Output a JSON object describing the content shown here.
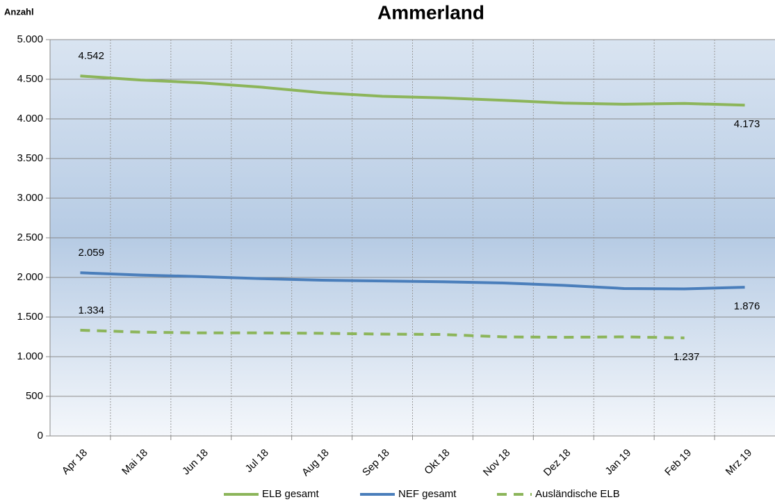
{
  "chart_data": {
    "type": "line",
    "title": "Ammerland",
    "y_label": "Anzahl",
    "categories": [
      "Apr 18",
      "Mai 18",
      "Jun 18",
      "Jul 18",
      "Aug 18",
      "Sep 18",
      "Okt 18",
      "Nov 18",
      "Dez 18",
      "Jan 19",
      "Feb 19",
      "Mrz 19"
    ],
    "series": [
      {
        "name": "ELB gesamt",
        "color": "#8cb55a",
        "dash": false,
        "values": [
          4542,
          4490,
          4455,
          4400,
          4330,
          4285,
          4265,
          4235,
          4200,
          4185,
          4195,
          4173
        ],
        "value_labels": [
          "4.542",
          null,
          null,
          null,
          null,
          null,
          null,
          null,
          null,
          null,
          null,
          "4.173"
        ]
      },
      {
        "name": "NEF gesamt",
        "color": "#4a7ebb",
        "dash": false,
        "values": [
          2059,
          2030,
          2010,
          1985,
          1965,
          1955,
          1945,
          1930,
          1900,
          1860,
          1855,
          1876
        ],
        "value_labels": [
          "2.059",
          null,
          null,
          null,
          null,
          null,
          null,
          null,
          null,
          null,
          null,
          "1.876"
        ]
      },
      {
        "name": "Ausländische ELB",
        "color": "#8cb55a",
        "dash": true,
        "values": [
          1334,
          1310,
          1300,
          1300,
          1295,
          1285,
          1280,
          1250,
          1245,
          1250,
          1237,
          null
        ],
        "value_labels": [
          "1.334",
          null,
          null,
          null,
          null,
          null,
          null,
          null,
          null,
          null,
          "1.237",
          null
        ]
      }
    ],
    "ylim": [
      0,
      5000
    ],
    "yticks": [
      0,
      500,
      {
        "value": 1000,
        "label": "1.000"
      },
      {
        "value": 1500,
        "label": "1.500"
      },
      {
        "value": 2000,
        "label": "2.000"
      },
      {
        "value": 2500,
        "label": "2.500"
      },
      {
        "value": 3000,
        "label": "3.000"
      },
      {
        "value": 3500,
        "label": "3.500"
      },
      {
        "value": 4000,
        "label": "4.000"
      },
      {
        "value": 4500,
        "label": "4.500"
      },
      {
        "value": 5000,
        "label": "5.000"
      }
    ],
    "grid": true
  }
}
